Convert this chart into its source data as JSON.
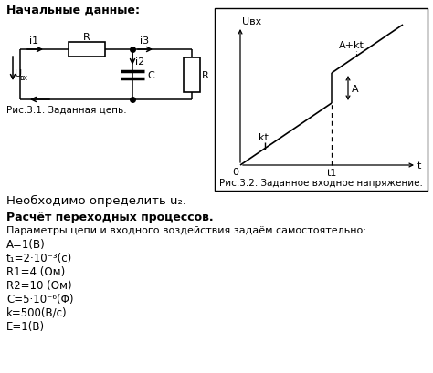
{
  "title_text": "Начальные данные:",
  "circuit_caption": "Рис.3.1. Заданная цепь.",
  "graph_caption": "Рис.3.2. Заданное входное напряжение.",
  "need_text": "Необходимо определить u₂.",
  "calc_text": "Расчёт переходных процессов.",
  "params_header": "Параметры цепи и входного воздействия задаём самостоятельно:",
  "params": [
    "A=1(В)",
    "t₁=2·10⁻³(с)",
    "R1=4 (Ом)",
    "R2=10 (Ом)",
    "C=5·10⁻⁶(Φ)",
    "k=500(В/с)",
    "E=1(В)"
  ],
  "graph_ylabel": "Uвх",
  "graph_xlabel_0": "0",
  "graph_xlabel_t1": "t1",
  "graph_xlabel_t": "t",
  "graph_label_kt": "kt",
  "graph_label_A": "A",
  "graph_label_Akt": "A+kt",
  "background_color": "#ffffff"
}
